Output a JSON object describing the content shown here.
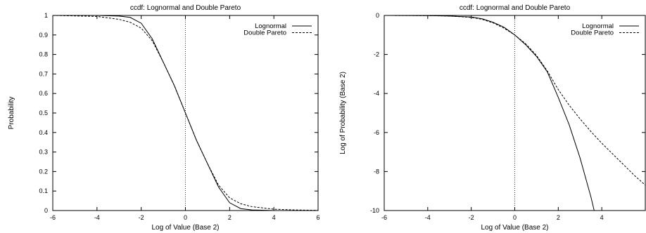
{
  "chart_data": [
    {
      "type": "line",
      "title": "ccdf: Lognormal and Double Pareto",
      "xlabel": "Log of Value (Base 2)",
      "ylabel": "Probability",
      "xlim": [
        -6,
        6
      ],
      "ylim": [
        0,
        1
      ],
      "xticks": [
        "-6",
        "-4",
        "-2",
        "0",
        "2",
        "4",
        "6"
      ],
      "yticks": [
        "0",
        "0.1",
        "0.2",
        "0.3",
        "0.4",
        "0.5",
        "0.6",
        "0.7",
        "0.8",
        "0.9",
        "1"
      ],
      "legend_position": "top-right",
      "reference_line_x": 0,
      "series": [
        {
          "name": "Lognormal",
          "style": "solid",
          "x": [
            -6,
            -4,
            -3,
            -2.5,
            -2,
            -1.5,
            -1,
            -0.5,
            0,
            0.5,
            1,
            1.5,
            2,
            2.5,
            3,
            4,
            6
          ],
          "y": [
            1,
            1,
            0.997,
            0.99,
            0.96,
            0.88,
            0.76,
            0.64,
            0.5,
            0.36,
            0.24,
            0.12,
            0.04,
            0.01,
            0.003,
            0,
            0
          ]
        },
        {
          "name": "Double Pareto",
          "style": "dashed",
          "x": [
            -6,
            -4,
            -3,
            -2.5,
            -2,
            -1.5,
            -1,
            -0.5,
            0,
            0.5,
            1,
            1.5,
            2,
            2.5,
            3,
            4,
            5,
            6
          ],
          "y": [
            1,
            0.995,
            0.98,
            0.965,
            0.935,
            0.87,
            0.76,
            0.64,
            0.5,
            0.36,
            0.24,
            0.13,
            0.065,
            0.035,
            0.02,
            0.007,
            0.003,
            0.001
          ]
        }
      ]
    },
    {
      "type": "line",
      "title": "ccdf: Lognormal and Double Pareto",
      "xlabel": "Log of Value (Base 2)",
      "ylabel": "Log of Probability (Base 2)",
      "xlim": [
        -6,
        6
      ],
      "ylim": [
        -10,
        0
      ],
      "xticks": [
        "-6",
        "-4",
        "-2",
        "0",
        "2",
        "4"
      ],
      "yticks": [
        "-10",
        "-8",
        "-6",
        "-4",
        "-2",
        "0"
      ],
      "legend_position": "top-right",
      "reference_line_x": 0,
      "series": [
        {
          "name": "Lognormal",
          "style": "solid",
          "x": [
            -6,
            -4,
            -3,
            -2,
            -1.5,
            -1,
            -0.5,
            0,
            0.5,
            1,
            1.5,
            2,
            2.5,
            3,
            3.5,
            3.65
          ],
          "y": [
            0,
            -0.01,
            -0.03,
            -0.08,
            -0.17,
            -0.35,
            -0.6,
            -1.0,
            -1.5,
            -2.1,
            -2.9,
            -4.2,
            -5.6,
            -7.3,
            -9.3,
            -10
          ]
        },
        {
          "name": "Double Pareto",
          "style": "dashed",
          "x": [
            -6,
            -4,
            -3,
            -2,
            -1.5,
            -1,
            -0.5,
            0,
            0.5,
            1,
            1.5,
            2,
            2.5,
            3,
            3.5,
            4,
            4.5,
            5,
            5.5,
            6
          ],
          "y": [
            0,
            -0.01,
            -0.03,
            -0.1,
            -0.2,
            -0.38,
            -0.65,
            -1.0,
            -1.45,
            -2.05,
            -2.85,
            -3.8,
            -4.6,
            -5.3,
            -5.95,
            -6.55,
            -7.1,
            -7.65,
            -8.2,
            -8.7
          ]
        }
      ]
    }
  ]
}
